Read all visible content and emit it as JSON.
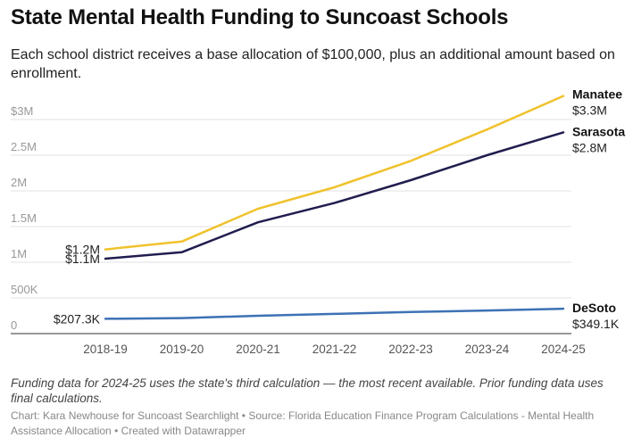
{
  "title": "State Mental Health Funding to Suncoast Schools",
  "subtitle": "Each school district receives a base allocation of $100,000, plus an additional amount based on enrollment.",
  "notes": "Funding data for 2024-25 uses the state's third calculation — the most recent available. Prior funding data uses final calculations.",
  "credit": "Chart: Kara Newhouse for Suncoast Searchlight • Source: Florida Education Finance Program Calculations - Mental Health Assistance Allocation • Created with Datawrapper",
  "chart_data": {
    "type": "line",
    "title": "State Mental Health Funding to Suncoast Schools",
    "xlabel": "",
    "ylabel": "",
    "categories": [
      "2018-19",
      "2019-20",
      "2020-21",
      "2021-22",
      "2022-23",
      "2023-24",
      "2024-25"
    ],
    "ylim": [
      0,
      3000000
    ],
    "yticks": [
      0,
      500000,
      1000000,
      1500000,
      2000000,
      2500000,
      3000000
    ],
    "ytick_labels": [
      "0",
      "500K",
      "1M",
      "1.5M",
      "2M",
      "2.5M",
      "$3M"
    ],
    "grid": true,
    "series": [
      {
        "name": "Manatee",
        "color": "#f0c22c",
        "values": [
          1180000,
          1290000,
          1750000,
          2050000,
          2420000,
          2860000,
          3330000
        ],
        "start_label": "$1.2M",
        "end_label": "$3.3M"
      },
      {
        "name": "Sarasota",
        "color": "#211d4f",
        "values": [
          1050000,
          1140000,
          1560000,
          1830000,
          2150000,
          2500000,
          2820000
        ],
        "start_label": "$1.1M",
        "end_label": "$2.8M"
      },
      {
        "name": "DeSoto",
        "color": "#3d71b5",
        "values": [
          207300,
          217000,
          250000,
          276000,
          302000,
          324000,
          349100
        ],
        "start_label": "$207.3K",
        "end_label": "$349.1K"
      }
    ]
  }
}
